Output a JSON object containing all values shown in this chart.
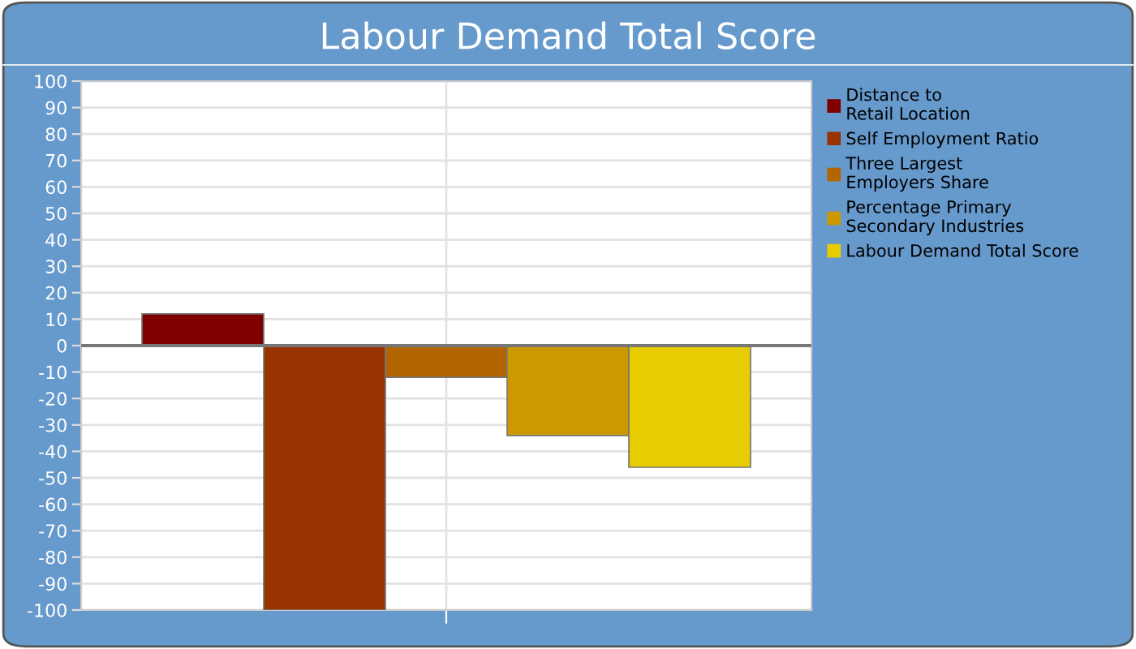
{
  "chart_data": {
    "type": "bar",
    "title": "Labour Demand Total Score",
    "categories": [
      null
    ],
    "series": [
      {
        "name": "Distance to\nRetail Location",
        "color": "#800000",
        "values": [
          12
        ]
      },
      {
        "name": "Self Employment Ratio",
        "color": "#993300",
        "values": [
          -100
        ]
      },
      {
        "name": "Three Largest\nEmployers Share",
        "color": "#b36600",
        "values": [
          -12
        ]
      },
      {
        "name": "Percentage Primary\nSecondary Industries",
        "color": "#cc9900",
        "values": [
          -34
        ]
      },
      {
        "name": "Labour Demand Total Score",
        "color": "#e6cc00",
        "values": [
          -46
        ]
      }
    ],
    "ylim": [
      -100,
      100
    ],
    "yticks": [
      -100,
      -90,
      -80,
      -70,
      -60,
      -50,
      -40,
      -30,
      -20,
      -10,
      0,
      10,
      20,
      30,
      40,
      50,
      60,
      70,
      80,
      90,
      100
    ],
    "grid": true,
    "legend": "right"
  }
}
